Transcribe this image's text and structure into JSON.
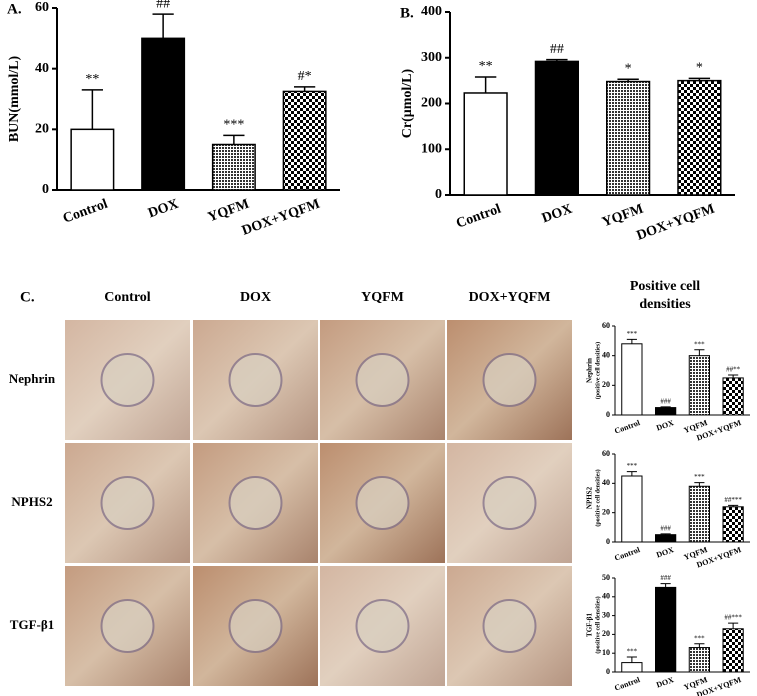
{
  "chart_data": [
    {
      "type": "bar",
      "title": "A.",
      "ylabel": "BUN(mmol/L)",
      "categories": [
        "Control",
        "DOX",
        "YQFM",
        "DOX+YQFM"
      ],
      "values": [
        20,
        50,
        15,
        32.5
      ],
      "errors": [
        13,
        8,
        3,
        1.5
      ],
      "annotations": [
        "**",
        "##",
        "***",
        "#*"
      ],
      "fills": [
        "white",
        "black",
        "dots",
        "checker"
      ],
      "ylim": [
        0,
        60
      ],
      "yticks": [
        0,
        20,
        40,
        60
      ]
    },
    {
      "type": "bar",
      "title": "B.",
      "ylabel": "Cr(μmol/L)",
      "categories": [
        "Control",
        "DOX",
        "YQFM",
        "DOX+YQFM"
      ],
      "values": [
        223,
        292,
        248,
        250
      ],
      "errors": [
        35,
        4,
        5,
        5
      ],
      "annotations": [
        "**",
        "##",
        "*",
        "*"
      ],
      "fills": [
        "white",
        "black",
        "dots",
        "checker"
      ],
      "ylim": [
        0,
        400
      ],
      "yticks": [
        0,
        100,
        200,
        300,
        400
      ]
    },
    {
      "type": "bar",
      "ylabel": "Nephrin",
      "ylabel2": "(positive cell densities)",
      "categories": [
        "Control",
        "DOX",
        "YQFM",
        "DOX+YQFM"
      ],
      "values": [
        48,
        5,
        40,
        25
      ],
      "errors": [
        3,
        0.5,
        4,
        2
      ],
      "annotations": [
        "***",
        "###",
        "***",
        "##**"
      ],
      "fills": [
        "white",
        "black",
        "dots",
        "checker"
      ],
      "ylim": [
        0,
        60
      ],
      "yticks": [
        0,
        20,
        40,
        60
      ]
    },
    {
      "type": "bar",
      "ylabel": "NPHS2",
      "ylabel2": "(positive cell densities)",
      "categories": [
        "Control",
        "DOX",
        "YQFM",
        "DOX+YQFM"
      ],
      "values": [
        45,
        5,
        38,
        24
      ],
      "errors": [
        3,
        0.5,
        2.5,
        1
      ],
      "annotations": [
        "***",
        "###",
        "***",
        "##***"
      ],
      "fills": [
        "white",
        "black",
        "dots",
        "checker"
      ],
      "ylim": [
        0,
        60
      ],
      "yticks": [
        0,
        20,
        40,
        60
      ]
    },
    {
      "type": "bar",
      "ylabel": "TGF-β1",
      "ylabel2": "(positive cell densities)",
      "categories": [
        "Control",
        "DOX",
        "YQFM",
        "DOX+YQFM"
      ],
      "values": [
        5,
        45,
        13,
        23
      ],
      "errors": [
        3,
        2,
        2,
        3
      ],
      "annotations": [
        "***",
        "###",
        "***",
        "##***"
      ],
      "fills": [
        "white",
        "black",
        "dots",
        "checker"
      ],
      "ylim": [
        0,
        50
      ],
      "yticks": [
        0,
        10,
        20,
        30,
        40,
        50
      ]
    }
  ],
  "panel_c": {
    "label": "C.",
    "columns": [
      "Control",
      "DOX",
      "YQFM",
      "DOX+YQFM"
    ],
    "rows": [
      "Nephrin",
      "NPHS2",
      "TGF-β1"
    ],
    "side_title": [
      "Positive cell",
      "densities"
    ]
  }
}
